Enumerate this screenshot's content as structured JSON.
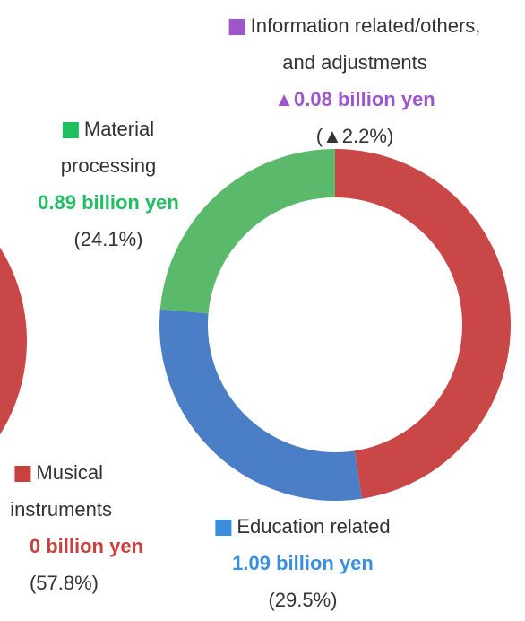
{
  "chart_data": [
    {
      "type": "donut",
      "segments": [
        {
          "label": [
            "Musical",
            "instruments"
          ],
          "value_label": "0 billion yen",
          "percent": 57.8,
          "percent_label": "(57.8%)",
          "color": "#c94746",
          "label_color": "#c9403c"
        }
      ]
    },
    {
      "type": "donut",
      "segments": [
        {
          "percent": 48.6,
          "color": "#c94746"
        },
        {
          "label": [
            "Education related"
          ],
          "value_label": "1.09 billion yen",
          "percent": 29.5,
          "percent_label": "(29.5%)",
          "color": "#4a7ec6",
          "label_color": "#3a8fdc"
        },
        {
          "label": [
            "Material",
            "processing"
          ],
          "value_label": "0.89 billion yen",
          "percent": 24.1,
          "percent_label": "(24.1%)",
          "color": "#5bb96c",
          "label_color": "#1fbf5f"
        },
        {
          "label": [
            "Information related/others,",
            "and adjustments"
          ],
          "value_label": "▲0.08 billion yen",
          "percent": -2.2,
          "percent_label": "(▲2.2%)",
          "color": "#a35ccc",
          "label_color": "#9d55c9"
        }
      ]
    }
  ]
}
